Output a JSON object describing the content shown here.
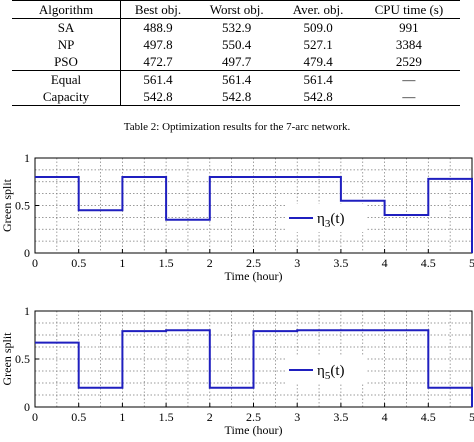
{
  "table": {
    "headers": [
      "Algorithm",
      "Best obj.",
      "Worst obj.",
      "Aver. obj.",
      "CPU time (s)"
    ],
    "rows": [
      [
        "SA",
        "488.9",
        "532.9",
        "509.0",
        "991"
      ],
      [
        "NP",
        "497.8",
        "550.4",
        "527.1",
        "3384"
      ],
      [
        "PSO",
        "472.7",
        "497.7",
        "479.4",
        "2529"
      ],
      [
        "Equal",
        "561.4",
        "561.4",
        "561.4",
        "—"
      ],
      [
        "Capacity",
        "542.8",
        "542.8",
        "542.8",
        "—"
      ]
    ],
    "caption": "Table 2: Optimization results for the 7-arc network."
  },
  "colors": {
    "series": "#1f1fbf",
    "grid": "#7a7a7a",
    "axis": "#000000"
  },
  "chart_data": [
    {
      "type": "line",
      "step": true,
      "xlabel": "Time (hour)",
      "ylabel": "Green split",
      "xlim": [
        0,
        5
      ],
      "ylim": [
        0,
        1
      ],
      "xticks": [
        "0",
        "0.5",
        "1",
        "1.5",
        "2",
        "2.5",
        "3",
        "3.5",
        "4",
        "4.5",
        "5"
      ],
      "yticks": [
        "0",
        "0.5",
        "1"
      ],
      "grid": true,
      "legend": "center-right",
      "series": [
        {
          "name": "η3(t)",
          "name_base": "η",
          "name_sub": "3",
          "name_suffix": "(t)",
          "x": [
            0,
            0.5,
            1,
            1.5,
            2,
            2.5,
            3,
            3.5,
            4,
            4.5,
            5
          ],
          "y": [
            0.8,
            0.45,
            0.8,
            0.35,
            0.8,
            0.8,
            0.8,
            0.55,
            0.4,
            0.78,
            0
          ]
        }
      ]
    },
    {
      "type": "line",
      "step": true,
      "xlabel": "Time (hour)",
      "ylabel": "Green split",
      "xlim": [
        0,
        5
      ],
      "ylim": [
        0,
        1
      ],
      "xticks": [
        "0",
        "0.5",
        "1",
        "1.5",
        "2",
        "2.5",
        "3",
        "3.5",
        "4",
        "4.5",
        "5"
      ],
      "yticks": [
        "0",
        "0.5",
        "1"
      ],
      "grid": true,
      "legend": "center-right",
      "series": [
        {
          "name": "η5(t)",
          "name_base": "η",
          "name_sub": "5",
          "name_suffix": "(t)",
          "x": [
            0,
            0.5,
            1,
            1.5,
            2,
            2.5,
            3,
            3.5,
            4,
            4.5,
            5
          ],
          "y": [
            0.67,
            0.2,
            0.79,
            0.8,
            0.2,
            0.79,
            0.8,
            0.8,
            0.8,
            0.2,
            0
          ]
        }
      ]
    }
  ]
}
